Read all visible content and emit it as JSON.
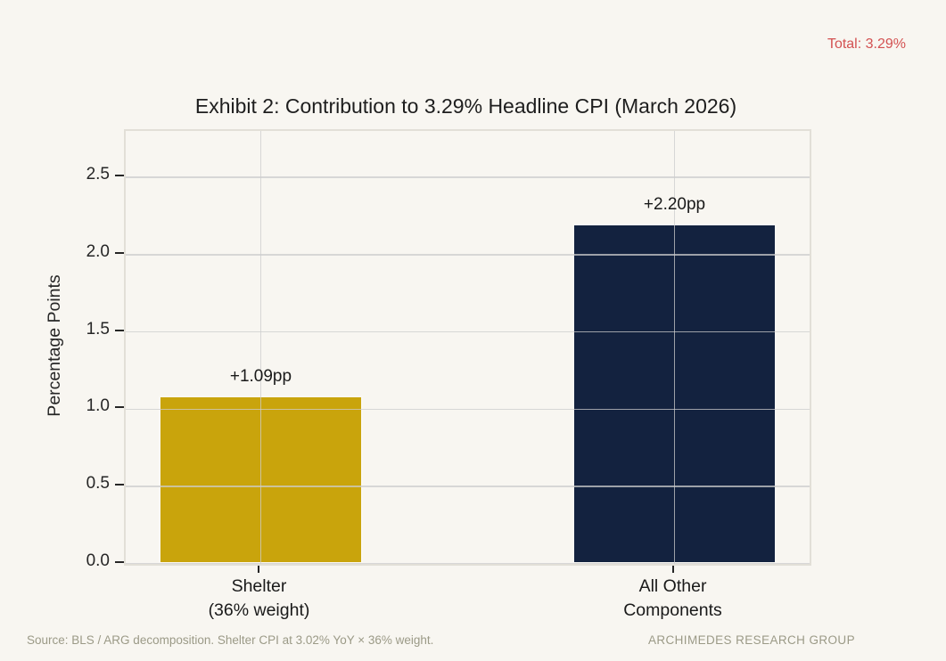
{
  "annotation": {
    "total_label": "Total: 3.29%"
  },
  "footer": {
    "source": "Source: BLS / ARG decomposition. Shelter CPI at 3.02% YoY × 36% weight.",
    "brand": "ARCHIMEDES RESEARCH GROUP"
  },
  "colors": {
    "background": "#F8F6F1",
    "bar_shelter_gold": "#C9A40C",
    "bar_other_navy": "#13223F",
    "total_red": "#D35151",
    "footer_gray": "#9B9A87",
    "gridline_gray": "#CCCCCC",
    "frame_border": "#E2DFD7",
    "text_dark": "#1A1A1A"
  },
  "chart_data": {
    "type": "bar",
    "title": "Exhibit 2: Contribution to 3.29% Headline CPI (March 2026)",
    "categories": [
      "Shelter\n(36% weight)",
      "All Other\nComponents"
    ],
    "values": [
      1.09,
      2.2
    ],
    "bar_labels": [
      "+1.09pp",
      "+2.20pp"
    ],
    "bar_colors": [
      "#C9A40C",
      "#13223F"
    ],
    "bar_names": [
      "bar-shelter",
      "bar-all-other-components"
    ],
    "xlabel": "",
    "ylabel": "Percentage Points",
    "ylim": [
      0,
      2.8
    ],
    "yticks": [
      0.0,
      0.5,
      1.0,
      1.5,
      2.0,
      2.5
    ],
    "ytick_labels": [
      "0.0",
      "0.5",
      "1.0",
      "1.5",
      "2.0",
      "2.5"
    ],
    "grid": true,
    "grid_over_bars": true,
    "legend": false,
    "bar_centers_frac": [
      0.1975,
      0.8025
    ],
    "bar_width_frac": 0.2986
  }
}
